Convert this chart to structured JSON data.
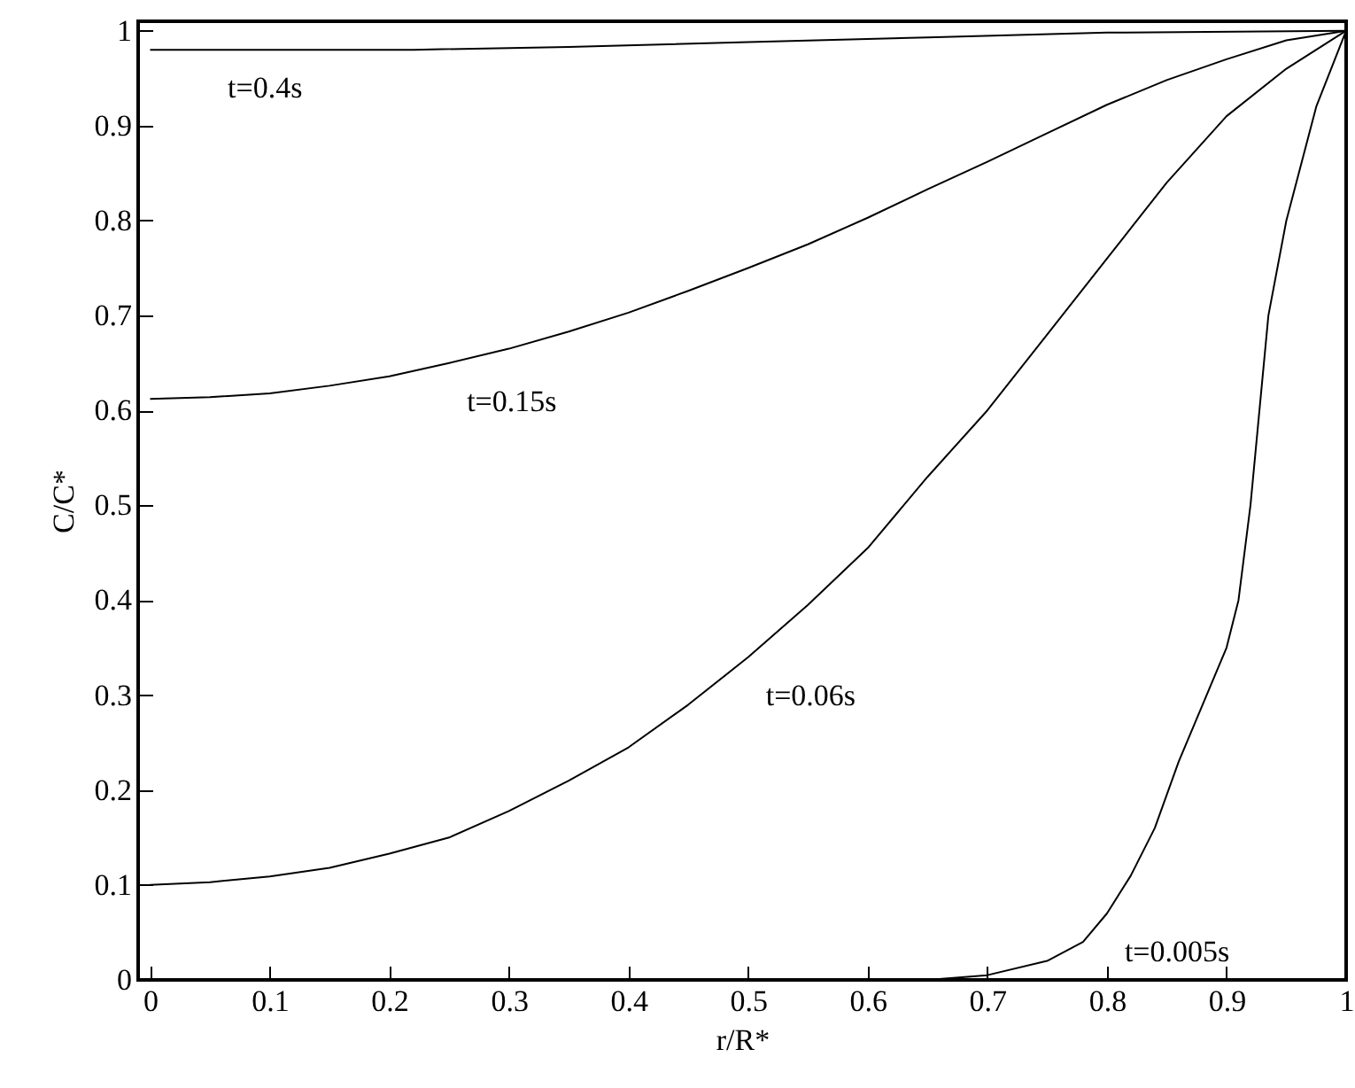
{
  "chart_data": {
    "type": "line",
    "xlabel": "r/R*",
    "ylabel": "C/C*",
    "xlim": [
      -0.01,
      1
    ],
    "ylim": [
      0,
      1.01
    ],
    "xticks": [
      0,
      0.1,
      0.2,
      0.3,
      0.4,
      0.5,
      0.6,
      0.7,
      0.8,
      0.9,
      1
    ],
    "yticks": [
      0,
      0.1,
      0.2,
      0.3,
      0.4,
      0.5,
      0.6,
      0.7,
      0.8,
      0.9,
      1
    ],
    "grid": false,
    "line_style": "solid",
    "marker": "none",
    "series": [
      {
        "color": "#000000",
        "x": [
          0,
          0.22,
          0.35,
          0.5,
          0.65,
          0.8,
          1
        ],
        "values": [
          0.98,
          0.98,
          0.983,
          0.988,
          0.993,
          0.998,
          1
        ]
      },
      {
        "color": "#000000",
        "x": [
          0,
          0.05,
          0.1,
          0.15,
          0.2,
          0.25,
          0.3,
          0.35,
          0.4,
          0.45,
          0.5,
          0.55,
          0.6,
          0.65,
          0.7,
          0.75,
          0.8,
          0.85,
          0.9,
          0.95,
          1
        ],
        "values": [
          0.612,
          0.614,
          0.618,
          0.626,
          0.636,
          0.65,
          0.665,
          0.683,
          0.703,
          0.726,
          0.75,
          0.775,
          0.803,
          0.833,
          0.862,
          0.892,
          0.922,
          0.948,
          0.97,
          0.99,
          1
        ]
      },
      {
        "color": "#000000",
        "x": [
          0,
          0.05,
          0.1,
          0.15,
          0.2,
          0.25,
          0.3,
          0.35,
          0.4,
          0.45,
          0.5,
          0.55,
          0.6,
          0.65,
          0.7,
          0.75,
          0.8,
          0.85,
          0.9,
          0.95,
          1
        ],
        "values": [
          0.1,
          0.103,
          0.109,
          0.118,
          0.133,
          0.15,
          0.178,
          0.21,
          0.245,
          0.29,
          0.34,
          0.395,
          0.455,
          0.53,
          0.6,
          0.68,
          0.76,
          0.84,
          0.91,
          0.96,
          1
        ]
      },
      {
        "color": "#000000",
        "x": [
          0,
          0.65,
          0.7,
          0.75,
          0.78,
          0.8,
          0.82,
          0.84,
          0.86,
          0.88,
          0.9,
          0.91,
          0.92,
          0.935,
          0.95,
          0.975,
          1
        ],
        "values": [
          0,
          0,
          0.005,
          0.02,
          0.04,
          0.07,
          0.11,
          0.16,
          0.23,
          0.29,
          0.35,
          0.4,
          0.5,
          0.7,
          0.8,
          0.92,
          1
        ]
      }
    ],
    "annotations": [
      {
        "text": "t=0.4s",
        "x": 0.05,
        "y": 0.98
      },
      {
        "text": "t=0.15s",
        "x": 0.25,
        "y": 0.65
      },
      {
        "text": "t=0.06s",
        "x": 0.5,
        "y": 0.34
      },
      {
        "text": "t=0.005s",
        "x": 0.8,
        "y": 0.07
      }
    ]
  }
}
